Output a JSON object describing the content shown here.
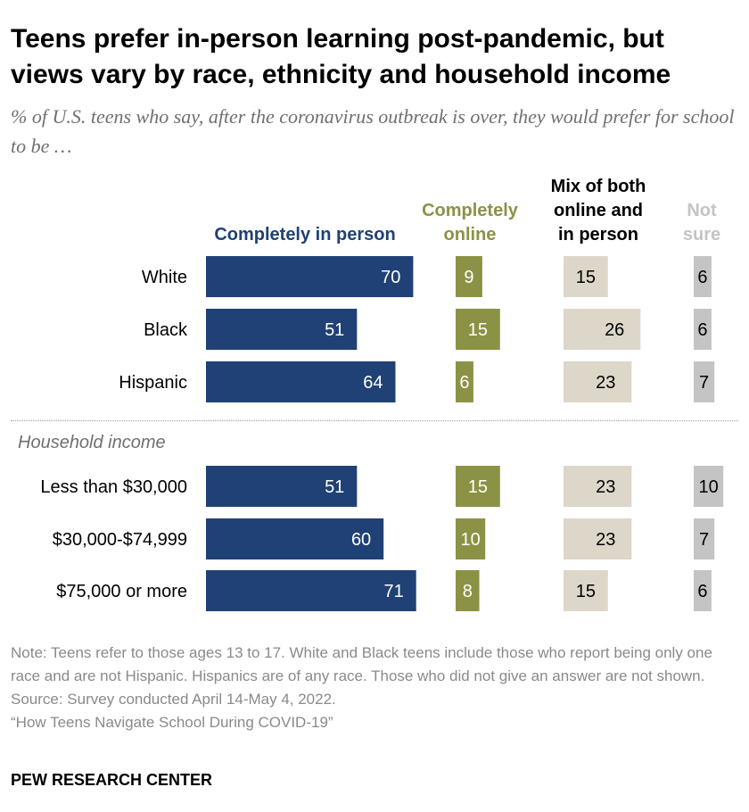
{
  "header": {
    "title": "Teens prefer in-person learning post-pandemic, but views vary by race, ethnicity and household income",
    "subtitle": "% of U.S. teens who say, after the coronavirus outbreak is over, they would prefer for school to be …"
  },
  "chart_data": {
    "type": "bar",
    "stacked": false,
    "orientation": "horizontal",
    "categories": [
      "White",
      "Black",
      "Hispanic",
      "Less than $30,000",
      "$30,000-$74,999",
      "$75,000 or more"
    ],
    "group_label": "Household income",
    "series": [
      {
        "name": "Completely in person",
        "color": "#1f4175",
        "label_color": "#ffffff",
        "values": [
          70,
          51,
          64,
          51,
          60,
          71
        ]
      },
      {
        "name": "Completely online",
        "color": "#8c9245",
        "label_color": "#ffffff",
        "values": [
          9,
          15,
          6,
          15,
          10,
          8
        ]
      },
      {
        "name": "Mix of both online and in person",
        "color": "#dcd7c9",
        "label_color": "#000000",
        "values": [
          15,
          26,
          23,
          23,
          23,
          15
        ]
      },
      {
        "name": "Not sure",
        "color": "#c4c4c4",
        "label_color": "#000000",
        "values": [
          6,
          6,
          7,
          10,
          7,
          6
        ]
      }
    ]
  },
  "columns": {
    "c0": "Completely in person",
    "c1_line1": "Completely",
    "c1_line2": "online",
    "c2_line1": "Mix of both",
    "c2_line2": "online and",
    "c2_line3": "in person",
    "c3_line1": "Not",
    "c3_line2": "sure"
  },
  "footer": {
    "note": "Note: Teens refer to those ages 13 to 17. White and Black teens include those who report being only one race and are not Hispanic. Hispanics are of any race. Those who did not give an answer are not shown.",
    "source": "Source: Survey conducted April 14-May 4, 2022.",
    "report": "“How Teens Navigate School During COVID-19”",
    "brand": "PEW RESEARCH CENTER"
  }
}
